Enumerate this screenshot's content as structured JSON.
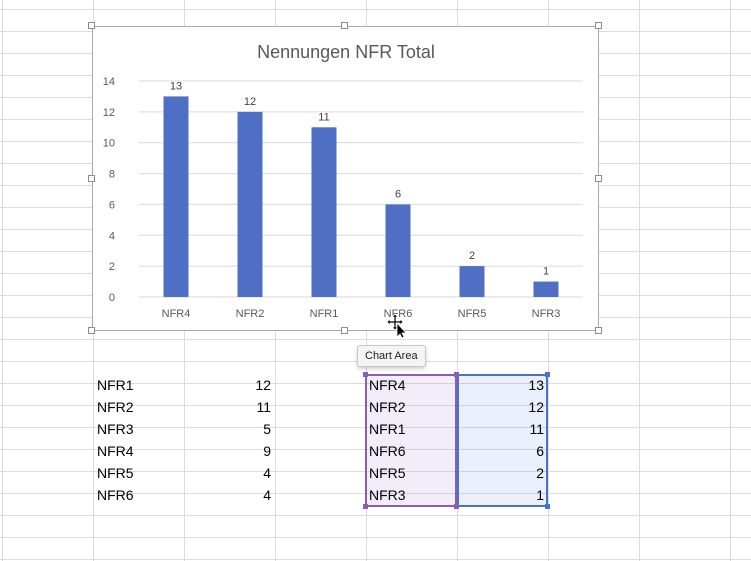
{
  "chart_data": {
    "type": "bar",
    "title": "Nennungen NFR Total",
    "categories": [
      "NFR4",
      "NFR2",
      "NFR1",
      "NFR6",
      "NFR5",
      "NFR3"
    ],
    "values": [
      13,
      12,
      11,
      6,
      2,
      1
    ],
    "yticks": [
      0,
      2,
      4,
      6,
      8,
      10,
      12,
      14
    ],
    "ylim": [
      0,
      14
    ],
    "xlabel": "",
    "ylabel": "",
    "grid": true,
    "data_labels": true,
    "bar_color": "#4f6fc4",
    "legend": "none"
  },
  "tooltip": {
    "text": "Chart Area"
  },
  "table1": {
    "rows": [
      {
        "label": "NFR1",
        "value": "12"
      },
      {
        "label": "NFR2",
        "value": "11"
      },
      {
        "label": "NFR3",
        "value": "5"
      },
      {
        "label": "NFR4",
        "value": "9"
      },
      {
        "label": "NFR5",
        "value": "4"
      },
      {
        "label": "NFR6",
        "value": "4"
      }
    ]
  },
  "table2": {
    "rows": [
      {
        "label": "NFR4",
        "value": "13"
      },
      {
        "label": "NFR2",
        "value": "12"
      },
      {
        "label": "NFR1",
        "value": "11"
      },
      {
        "label": "NFR6",
        "value": "6"
      },
      {
        "label": "NFR5",
        "value": "2"
      },
      {
        "label": "NFR3",
        "value": "1"
      }
    ]
  },
  "colors": {
    "selection_label_range": "#8a5cb8",
    "selection_value_range": "#4a72c4",
    "gridline": "#dcdcdc"
  },
  "icons": {
    "cursor": "move-cursor-icon"
  }
}
